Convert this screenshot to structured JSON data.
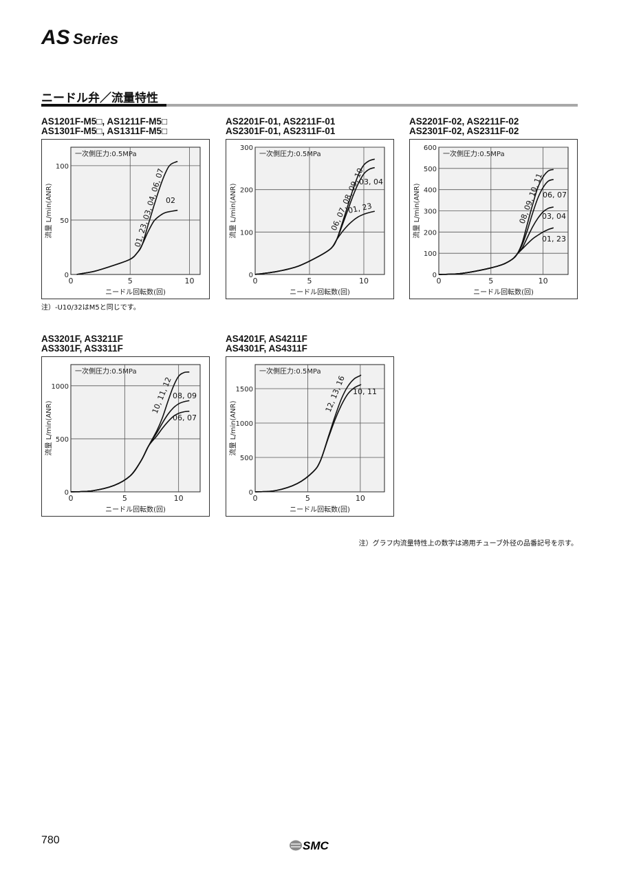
{
  "header": {
    "series_main": "AS",
    "series_sub": "Series"
  },
  "section": {
    "title": "ニードル弁／流量特性"
  },
  "notes": {
    "m5_note": "注）-U10/32はM5と同じです。",
    "bottom_note": "注）グラフ内流量特性上の数字は適用チューブ外径の品番記号を示す。"
  },
  "footer": {
    "page_number": "780",
    "logo_text": "SMC"
  },
  "colors": {
    "line": "#111111",
    "grid": "#555555",
    "plot_bg": "#f1f1f1",
    "rule_gray": "#a8a8a8"
  },
  "chart_data": [
    {
      "type": "line",
      "heading": [
        "AS1201F-M5□, AS1211F-M5□",
        "AS1301F-M5□, AS1311F-M5□"
      ],
      "annotation": "一次側圧力:0.5MPa",
      "xlabel": "ニードル回転数(回)",
      "ylabel": "流量 L/min(ANR)",
      "xlim": [
        0,
        10.9
      ],
      "ylim": [
        0,
        117
      ],
      "xticks": [
        0,
        5,
        10
      ],
      "yticks": [
        0,
        50,
        100
      ],
      "grid": true,
      "series": [
        {
          "name": "01, 23, 03, 04, 06, 07",
          "label_style": "rotated",
          "points": [
            [
              0.5,
              0
            ],
            [
              2,
              3
            ],
            [
              3.5,
              8
            ],
            [
              5,
              14
            ],
            [
              5.6,
              20
            ],
            [
              6,
              27
            ],
            [
              6.5,
              45
            ],
            [
              7,
              63
            ],
            [
              7.5,
              80
            ],
            [
              8,
              94
            ],
            [
              8.4,
              101
            ],
            [
              9,
              104
            ]
          ]
        },
        {
          "name": "02",
          "label_style": "flat",
          "points": [
            [
              0.5,
              0
            ],
            [
              2,
              3
            ],
            [
              3.5,
              8
            ],
            [
              5,
              14
            ],
            [
              5.6,
              20
            ],
            [
              6,
              27
            ],
            [
              6.5,
              39
            ],
            [
              7,
              49
            ],
            [
              7.5,
              54
            ],
            [
              8,
              57
            ],
            [
              9,
              59
            ]
          ]
        }
      ]
    },
    {
      "type": "line",
      "heading": [
        "AS2201F-01, AS2211F-01",
        "AS2301F-01, AS2311F-01"
      ],
      "annotation": "一次側圧力:0.5MPa",
      "xlabel": "ニードル回転数(回)",
      "ylabel": "流量 L/min(ANR)",
      "xlim": [
        0,
        11.9
      ],
      "ylim": [
        0,
        300
      ],
      "xticks": [
        0,
        5,
        10
      ],
      "yticks": [
        0,
        100,
        200,
        300
      ],
      "grid": true,
      "series": [
        {
          "name": "06, 07, 08, 09, 10",
          "label_style": "rotated",
          "points": [
            [
              0,
              0
            ],
            [
              2,
              7
            ],
            [
              4,
              20
            ],
            [
              6,
              45
            ],
            [
              7,
              62
            ],
            [
              7.5,
              82
            ],
            [
              8,
              120
            ],
            [
              8.5,
              160
            ],
            [
              9,
              200
            ],
            [
              9.5,
              235
            ],
            [
              10,
              258
            ],
            [
              10.5,
              268
            ],
            [
              11,
              272
            ]
          ]
        },
        {
          "name": "03, 04",
          "label_style": "flat",
          "points": [
            [
              0,
              0
            ],
            [
              2,
              7
            ],
            [
              4,
              20
            ],
            [
              6,
              45
            ],
            [
              7,
              62
            ],
            [
              7.5,
              82
            ],
            [
              8,
              115
            ],
            [
              8.5,
              150
            ],
            [
              9,
              185
            ],
            [
              9.5,
              215
            ],
            [
              10,
              237
            ],
            [
              10.5,
              248
            ],
            [
              11,
              252
            ]
          ]
        },
        {
          "name": "01, 23",
          "label_style": "flat",
          "points": [
            [
              0,
              0
            ],
            [
              2,
              7
            ],
            [
              4,
              20
            ],
            [
              6,
              45
            ],
            [
              7,
              62
            ],
            [
              7.5,
              82
            ],
            [
              8,
              100
            ],
            [
              8.5,
              115
            ],
            [
              9,
              127
            ],
            [
              9.5,
              136
            ],
            [
              10,
              142
            ],
            [
              10.5,
              146
            ],
            [
              11,
              149
            ]
          ]
        }
      ]
    },
    {
      "type": "line",
      "heading": [
        "AS2201F-02, AS2211F-02",
        "AS2301F-02, AS2311F-02"
      ],
      "annotation": "一次側圧力:0.5MPa",
      "xlabel": "ニードル回転数(回)",
      "ylabel": "流量 L/min(ANR)",
      "xlim": [
        0,
        12.4
      ],
      "ylim": [
        0,
        600
      ],
      "xticks": [
        0,
        5,
        10
      ],
      "yticks": [
        0,
        100,
        200,
        300,
        400,
        500,
        600
      ],
      "grid": true,
      "series": [
        {
          "name": "08, 09, 10, 11",
          "label_style": "rotated",
          "points": [
            [
              0,
              0
            ],
            [
              2,
              4
            ],
            [
              4,
              20
            ],
            [
              6,
              45
            ],
            [
              7,
              70
            ],
            [
              7.5,
              95
            ],
            [
              8,
              150
            ],
            [
              8.5,
              240
            ],
            [
              9,
              330
            ],
            [
              9.5,
              410
            ],
            [
              10,
              460
            ],
            [
              10.5,
              488
            ],
            [
              11,
              495
            ]
          ]
        },
        {
          "name": "06, 07",
          "label_style": "flat",
          "points": [
            [
              0,
              0
            ],
            [
              2,
              4
            ],
            [
              4,
              20
            ],
            [
              6,
              45
            ],
            [
              7,
              70
            ],
            [
              7.5,
              95
            ],
            [
              8,
              140
            ],
            [
              8.5,
              210
            ],
            [
              9,
              290
            ],
            [
              9.5,
              360
            ],
            [
              10,
              410
            ],
            [
              10.5,
              440
            ],
            [
              11,
              448
            ]
          ]
        },
        {
          "name": "03, 04",
          "label_style": "flat",
          "points": [
            [
              0,
              0
            ],
            [
              2,
              4
            ],
            [
              4,
              20
            ],
            [
              6,
              45
            ],
            [
              7,
              70
            ],
            [
              7.5,
              95
            ],
            [
              8,
              125
            ],
            [
              8.5,
              175
            ],
            [
              9,
              225
            ],
            [
              9.5,
              265
            ],
            [
              10,
              295
            ],
            [
              10.5,
              312
            ],
            [
              11,
              318
            ]
          ]
        },
        {
          "name": "01, 23",
          "label_style": "flat",
          "points": [
            [
              0,
              0
            ],
            [
              2,
              4
            ],
            [
              4,
              20
            ],
            [
              6,
              45
            ],
            [
              7,
              70
            ],
            [
              7.5,
              95
            ],
            [
              8,
              120
            ],
            [
              8.5,
              145
            ],
            [
              9,
              168
            ],
            [
              9.5,
              185
            ],
            [
              10,
              200
            ],
            [
              10.5,
              212
            ],
            [
              11,
              220
            ]
          ]
        }
      ]
    },
    {
      "type": "line",
      "heading": [
        "AS3201F, AS3211F",
        "AS3301F, AS3311F"
      ],
      "annotation": "一次側圧力:0.5MPa",
      "xlabel": "ニードル回転数(回)",
      "ylabel": "流量 L/min(ANR)",
      "xlim": [
        0,
        12
      ],
      "ylim": [
        0,
        1200
      ],
      "xticks": [
        0,
        5,
        10
      ],
      "yticks": [
        0,
        500,
        1000
      ],
      "grid": true,
      "series": [
        {
          "name": "10, 11, 12",
          "label_style": "rotated",
          "points": [
            [
              0,
              0
            ],
            [
              2,
              10
            ],
            [
              4,
              60
            ],
            [
              5.5,
              150
            ],
            [
              6.5,
              290
            ],
            [
              7.2,
              430
            ],
            [
              8,
              580
            ],
            [
              8.5,
              700
            ],
            [
              9,
              850
            ],
            [
              9.5,
              990
            ],
            [
              10,
              1090
            ],
            [
              10.5,
              1125
            ],
            [
              11,
              1130
            ]
          ]
        },
        {
          "name": "08, 09",
          "label_style": "flat",
          "points": [
            [
              0,
              0
            ],
            [
              2,
              10
            ],
            [
              4,
              60
            ],
            [
              5.5,
              150
            ],
            [
              6.5,
              290
            ],
            [
              7.2,
              430
            ],
            [
              8,
              560
            ],
            [
              8.5,
              650
            ],
            [
              9,
              730
            ],
            [
              9.5,
              790
            ],
            [
              10,
              830
            ],
            [
              10.5,
              850
            ],
            [
              11,
              860
            ]
          ]
        },
        {
          "name": "06, 07",
          "label_style": "flat",
          "points": [
            [
              0,
              0
            ],
            [
              2,
              10
            ],
            [
              4,
              60
            ],
            [
              5.5,
              150
            ],
            [
              6.5,
              290
            ],
            [
              7.2,
              430
            ],
            [
              8,
              530
            ],
            [
              8.5,
              600
            ],
            [
              9,
              660
            ],
            [
              9.5,
              710
            ],
            [
              10,
              740
            ],
            [
              10.5,
              755
            ],
            [
              11,
              760
            ]
          ]
        }
      ]
    },
    {
      "type": "line",
      "heading": [
        "AS4201F, AS4211F",
        "AS4301F, AS4311F"
      ],
      "annotation": "一次側圧力:0.5MPa",
      "xlabel": "ニードル回転数(回)",
      "ylabel": "流量 L/min(ANR)",
      "xlim": [
        0,
        12.3
      ],
      "ylim": [
        0,
        1850
      ],
      "xticks": [
        0,
        5,
        10
      ],
      "yticks": [
        0,
        500,
        1000,
        1500
      ],
      "grid": true,
      "series": [
        {
          "name": "12, 13, 16",
          "label_style": "rotated",
          "points": [
            [
              0,
              0
            ],
            [
              2,
              20
            ],
            [
              4,
              120
            ],
            [
              5.5,
              290
            ],
            [
              6.2,
              450
            ],
            [
              7,
              820
            ],
            [
              7.6,
              1100
            ],
            [
              8.2,
              1350
            ],
            [
              8.8,
              1530
            ],
            [
              9.4,
              1640
            ],
            [
              10,
              1690
            ],
            [
              10,
              1700
            ]
          ]
        },
        {
          "name": "10, 11",
          "label_style": "flat",
          "points": [
            [
              0,
              0
            ],
            [
              2,
              20
            ],
            [
              4,
              120
            ],
            [
              5.5,
              290
            ],
            [
              6.2,
              450
            ],
            [
              7,
              800
            ],
            [
              7.6,
              1050
            ],
            [
              8.2,
              1260
            ],
            [
              8.8,
              1420
            ],
            [
              9.4,
              1510
            ],
            [
              10,
              1555
            ],
            [
              10,
              1560
            ]
          ]
        }
      ]
    }
  ]
}
